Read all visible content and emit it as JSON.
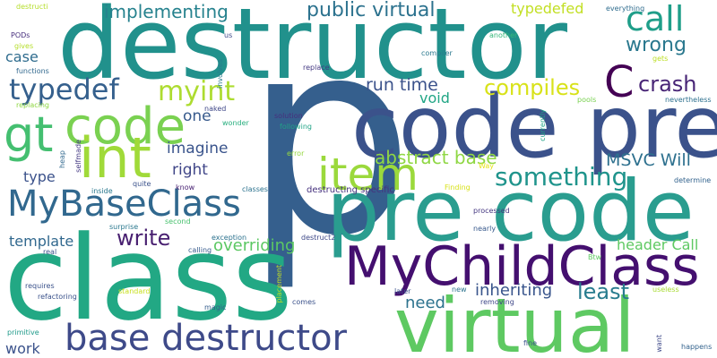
{
  "words": [
    {
      "id": "p",
      "text": "p",
      "color": "#355f8d"
    },
    {
      "id": "destructor",
      "text": "destructor",
      "color": "#21918c"
    },
    {
      "id": "class",
      "text": "class",
      "color": "#22a884"
    },
    {
      "id": "code-pre-1",
      "text": "code pre",
      "color": "#3b528b"
    },
    {
      "id": "pre-code",
      "text": "pre code",
      "color": "#2a9d8f"
    },
    {
      "id": "virtual",
      "text": "virtual",
      "color": "#5ec962"
    },
    {
      "id": "mychildclass",
      "text": "MyChildClass",
      "color": "#440f6f"
    },
    {
      "id": "base-destructor",
      "text": "base destructor",
      "color": "#3e4a89"
    },
    {
      "id": "code",
      "text": "code",
      "color": "#7ad151"
    },
    {
      "id": "int",
      "text": "int",
      "color": "#a0da39"
    },
    {
      "id": "gt",
      "text": "gt",
      "color": "#44bf70"
    },
    {
      "id": "mybaseclass",
      "text": "MyBaseClass",
      "color": "#31688e"
    },
    {
      "id": "item",
      "text": "item",
      "color": "#9bd93c"
    },
    {
      "id": "c",
      "text": "C",
      "color": "#440154"
    },
    {
      "id": "call",
      "text": "call",
      "color": "#1f9e89"
    },
    {
      "id": "typedef",
      "text": "typedef",
      "color": "#35608d"
    },
    {
      "id": "myint",
      "text": "myint",
      "color": "#addc30"
    },
    {
      "id": "implementing",
      "text": "implementing",
      "color": "#26828e"
    },
    {
      "id": "public-virtual",
      "text": "public virtual",
      "color": "#2c728e"
    },
    {
      "id": "wrong",
      "text": "wrong",
      "color": "#2a788e"
    },
    {
      "id": "compiles",
      "text": "compiles",
      "color": "#d8e219"
    },
    {
      "id": "crash",
      "text": "crash",
      "color": "#482576"
    },
    {
      "id": "run-time",
      "text": "run time",
      "color": "#3b528b"
    },
    {
      "id": "void",
      "text": "void",
      "color": "#21a685"
    },
    {
      "id": "something",
      "text": "something",
      "color": "#1f948c"
    },
    {
      "id": "abstract-base",
      "text": "abstract base",
      "color": "#8fd744"
    },
    {
      "id": "msvc-will",
      "text": "MSVC Will",
      "color": "#2d708e"
    },
    {
      "id": "imagine",
      "text": "imagine",
      "color": "#3a548c"
    },
    {
      "id": "one",
      "text": "one",
      "color": "#375a8c"
    },
    {
      "id": "right",
      "text": "right",
      "color": "#404688"
    },
    {
      "id": "type",
      "text": "type",
      "color": "#3b528b"
    },
    {
      "id": "write",
      "text": "write",
      "color": "#481f70"
    },
    {
      "id": "template",
      "text": "template",
      "color": "#31688e"
    },
    {
      "id": "overriding",
      "text": "overriding",
      "color": "#5cc863"
    },
    {
      "id": "least",
      "text": "least",
      "color": "#287c8e"
    },
    {
      "id": "inheriting",
      "text": "inheriting",
      "color": "#39558c"
    },
    {
      "id": "need",
      "text": "need",
      "color": "#2c728e"
    },
    {
      "id": "header-call",
      "text": "header Call",
      "color": "#5ec962"
    },
    {
      "id": "work",
      "text": "work",
      "color": "#3b528b"
    },
    {
      "id": "case",
      "text": "case",
      "color": "#2f6c8e"
    },
    {
      "id": "typedefed",
      "text": "typedefed",
      "color": "#c2df23"
    },
    {
      "id": "destructi",
      "text": "destructi",
      "color": "#b5de2b"
    },
    {
      "id": "pods",
      "text": "PODs",
      "color": "#472f7d"
    },
    {
      "id": "gives",
      "text": "gives",
      "color": "#b5de2b"
    },
    {
      "id": "functions",
      "text": "functions",
      "color": "#31688e"
    },
    {
      "id": "replacing",
      "text": "replacing",
      "color": "#8fd744"
    },
    {
      "id": "us",
      "text": "us",
      "color": "#3e4989"
    },
    {
      "id": "involves",
      "text": "involves",
      "color": "#287c8e"
    },
    {
      "id": "naked",
      "text": "naked",
      "color": "#3f4788"
    },
    {
      "id": "wonder",
      "text": "wonder",
      "color": "#29af7f"
    },
    {
      "id": "replace",
      "text": "replace",
      "color": "#443983"
    },
    {
      "id": "solution",
      "text": "solution",
      "color": "#472f7d"
    },
    {
      "id": "following",
      "text": "following",
      "color": "#20a386"
    },
    {
      "id": "error",
      "text": "error",
      "color": "#95d840"
    },
    {
      "id": "compiler",
      "text": "compiler",
      "color": "#2a788e"
    },
    {
      "id": "another",
      "text": "another",
      "color": "#35b779"
    },
    {
      "id": "everything",
      "text": "everything",
      "color": "#2f6c8e"
    },
    {
      "id": "gets",
      "text": "gets",
      "color": "#bddf26"
    },
    {
      "id": "currently",
      "text": "currently",
      "color": "#20a386"
    },
    {
      "id": "pools",
      "text": "pools",
      "color": "#7ad151"
    },
    {
      "id": "nevertheless",
      "text": "nevertheless",
      "color": "#2d708e"
    },
    {
      "id": "way",
      "text": "Way",
      "color": "#e5e419"
    },
    {
      "id": "finding",
      "text": "Finding",
      "color": "#d8e219"
    },
    {
      "id": "determine",
      "text": "determine",
      "color": "#33638d"
    },
    {
      "id": "heap",
      "text": "heap",
      "color": "#31688e"
    },
    {
      "id": "selfmade",
      "text": "selfmade",
      "color": "#443983"
    },
    {
      "id": "quite",
      "text": "quite",
      "color": "#3b528b"
    },
    {
      "id": "know",
      "text": "know",
      "color": "#482173"
    },
    {
      "id": "classes",
      "text": "classes",
      "color": "#2c728e"
    },
    {
      "id": "destructing-specific",
      "text": "destructing specific",
      "color": "#46327e"
    },
    {
      "id": "processed",
      "text": "processed",
      "color": "#453781"
    },
    {
      "id": "inside",
      "text": "inside",
      "color": "#2a788e"
    },
    {
      "id": "second",
      "text": "second",
      "color": "#48c16e"
    },
    {
      "id": "surprise",
      "text": "surprise",
      "color": "#2a788e"
    },
    {
      "id": "exception",
      "text": "exception",
      "color": "#2c728e"
    },
    {
      "id": "destruct2",
      "text": "destruct2",
      "color": "#3e4989"
    },
    {
      "id": "nearly",
      "text": "nearly",
      "color": "#38598c"
    },
    {
      "id": "real",
      "text": "real",
      "color": "#3b528b"
    },
    {
      "id": "calling",
      "text": "calling",
      "color": "#375b8d"
    },
    {
      "id": "btw",
      "text": "Btw",
      "color": "#5ec962"
    },
    {
      "id": "requires",
      "text": "requires",
      "color": "#3b528b"
    },
    {
      "id": "standard",
      "text": "standard",
      "color": "#c8e020"
    },
    {
      "id": "placement",
      "text": "placement",
      "color": "#c2df23"
    },
    {
      "id": "later",
      "text": "later",
      "color": "#3b528b"
    },
    {
      "id": "new",
      "text": "new",
      "color": "#2c728e"
    },
    {
      "id": "useless",
      "text": "useless",
      "color": "#a8db34"
    },
    {
      "id": "refactoring",
      "text": "refactoring",
      "color": "#3b528b"
    },
    {
      "id": "magic",
      "text": "magic",
      "color": "#355f8d"
    },
    {
      "id": "comes",
      "text": "comes",
      "color": "#3b528b"
    },
    {
      "id": "removing",
      "text": "removing",
      "color": "#3f4788"
    },
    {
      "id": "primitive",
      "text": "primitive",
      "color": "#1f9a8a"
    },
    {
      "id": "fine",
      "text": "fine",
      "color": "#3b528b"
    },
    {
      "id": "want",
      "text": "want",
      "color": "#3e4989"
    },
    {
      "id": "happens",
      "text": "happens",
      "color": "#33638d"
    }
  ]
}
